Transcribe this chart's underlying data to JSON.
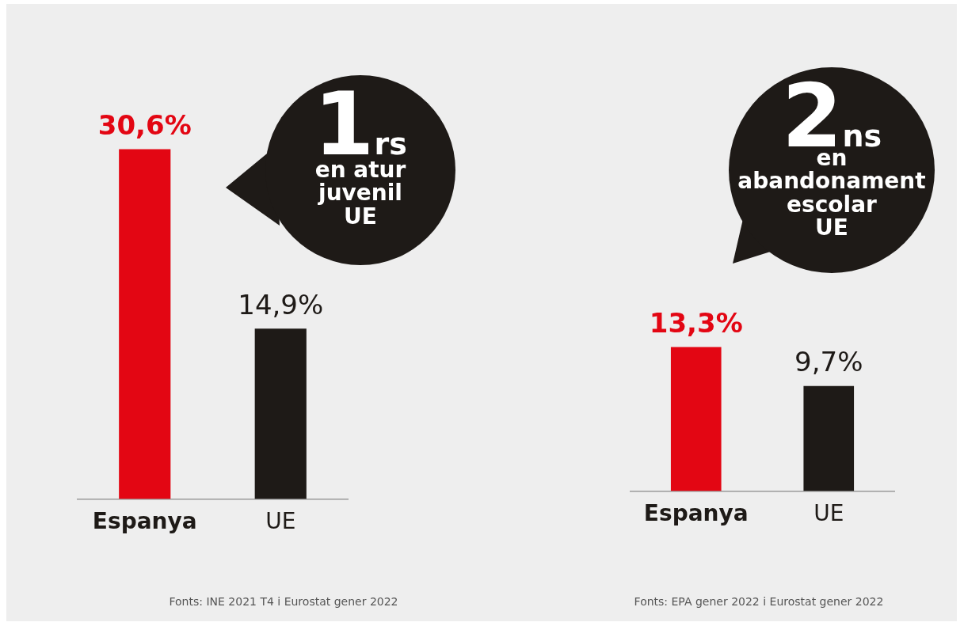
{
  "chart_data": [
    {
      "type": "bar",
      "categories": [
        "Espanya",
        "UE"
      ],
      "values": [
        30.6,
        14.9
      ],
      "colors": [
        "#e30613",
        "#1e1a17"
      ],
      "value_labels": [
        "30,6%",
        "14,9%"
      ],
      "annotations": [
        "1rs",
        "en atur\njuvenil\nUE",
        "Fonts: INE 2021 T4 i Eurostat gener 2022"
      ]
    },
    {
      "type": "bar",
      "categories": [
        "Espanya",
        "UE"
      ],
      "values": [
        13.3,
        9.7
      ],
      "colors": [
        "#e30613",
        "#1e1a17"
      ],
      "value_labels": [
        "13,3%",
        "9,7%"
      ],
      "annotations": [
        "2ns",
        "en\nabandonament\nescolar\nUE",
        "Fonts: EPA gener 2022 i Eurostat gener 2022"
      ]
    }
  ]
}
